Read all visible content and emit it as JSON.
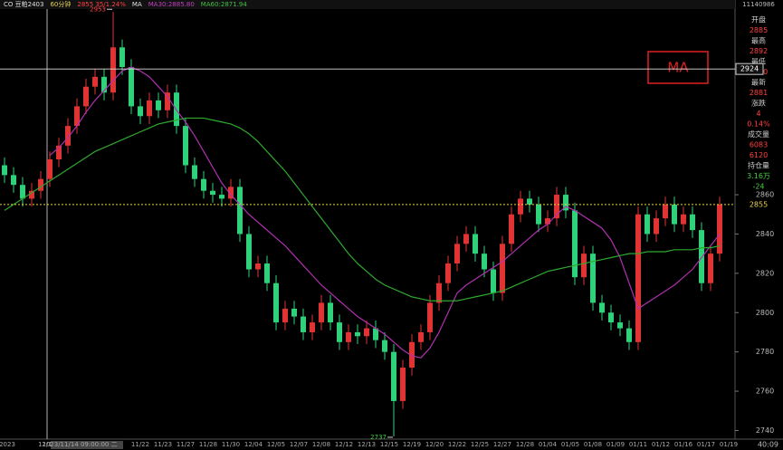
{
  "chart_data": {
    "type": "candlestick",
    "header": [
      {
        "text": "CO 豆粕2403",
        "color": "#e0e0e0"
      },
      {
        "text": "60分钟",
        "color": "#e8d44d"
      },
      {
        "text": "2855 35/1.24%",
        "color": "#ff4040"
      },
      {
        "text": "MA",
        "color": "#e0e0e0"
      },
      {
        "text": "MA30:2885.80",
        "color": "#c040c0"
      },
      {
        "text": "MA60:2871.94",
        "color": "#40c040"
      }
    ],
    "info_code": "11140986",
    "info": [
      {
        "label": "开盘",
        "value": "2885",
        "color": "#ff4040"
      },
      {
        "label": "最高",
        "value": "2892",
        "color": "#ff4040"
      },
      {
        "label": "最低",
        "value": "2880",
        "color": "#ff4040"
      },
      {
        "label": "最新",
        "value": "2881",
        "color": "#ff4040"
      },
      {
        "label": "涨跌",
        "value": "4",
        "color": "#ff4040"
      },
      {
        "label": null,
        "value": "0.14%",
        "color": "#ff4040"
      },
      {
        "label": "成交量",
        "value": "6083",
        "color": "#ff4040"
      },
      {
        "label": null,
        "value": "6120",
        "color": "#ff4040"
      },
      {
        "label": "持仓量",
        "value": "3.16万",
        "color": "#40d040"
      },
      {
        "label": null,
        "value": "-24",
        "color": "#40d040"
      }
    ],
    "annotation_box": "MA",
    "crosshair_price": 2924,
    "last_price": 2855,
    "high_label": "2953",
    "low_label": "2737",
    "x_labels": [
      "2023",
      "11/1",
      "2023/11/14 09:00:00 二",
      "11/22",
      "11/23",
      "11/27",
      "11/28",
      "11/30",
      "12/04",
      "12/05",
      "12/07",
      "12/08",
      "12/12",
      "12/13",
      "12/15",
      "12/19",
      "12/20",
      "12/22",
      "12/25",
      "12/27",
      "12/28",
      "01/04",
      "01/05",
      "01/08",
      "01/09",
      "01/11",
      "01/12",
      "01/16",
      "01/17",
      "01/19"
    ],
    "corner_label": "40:09",
    "up_color": "#e03434",
    "down_color": "#2fd27a",
    "ylim": [
      2735.6,
      2954.5
    ],
    "yticks": [
      2740,
      2760,
      2780,
      2800,
      2820,
      2840,
      2860
    ],
    "open": [
      2875,
      2870,
      2865,
      2858,
      2862,
      2868,
      2878,
      2885,
      2895,
      2905,
      2915,
      2920,
      2912,
      2935,
      2925,
      2905,
      2900,
      2908,
      2903,
      2912,
      2895,
      2875,
      2868,
      2862,
      2860,
      2858,
      2864,
      2840,
      2822,
      2825,
      2815,
      2795,
      2802,
      2798,
      2790,
      2795,
      2805,
      2795,
      2785,
      2790,
      2788,
      2792,
      2786,
      2780,
      2755,
      2772,
      2785,
      2790,
      2805,
      2815,
      2825,
      2835,
      2840,
      2830,
      2822,
      2810,
      2835,
      2850,
      2858,
      2855,
      2845,
      2848,
      2860,
      2852,
      2818,
      2830,
      2805,
      2800,
      2795,
      2792,
      2785,
      2850,
      2840,
      2848,
      2855,
      2845,
      2850,
      2842,
      2815,
      2830
    ],
    "high": [
      2879,
      2874,
      2869,
      2866,
      2872,
      2882,
      2889,
      2899,
      2909,
      2919,
      2924,
      2924,
      2953,
      2939,
      2929,
      2909,
      2912,
      2912,
      2916,
      2916,
      2899,
      2879,
      2872,
      2866,
      2864,
      2868,
      2868,
      2844,
      2829,
      2829,
      2819,
      2806,
      2806,
      2802,
      2799,
      2809,
      2809,
      2799,
      2794,
      2794,
      2796,
      2796,
      2790,
      2784,
      2776,
      2789,
      2794,
      2809,
      2819,
      2829,
      2839,
      2844,
      2844,
      2834,
      2826,
      2839,
      2854,
      2862,
      2862,
      2859,
      2852,
      2864,
      2864,
      2856,
      2834,
      2834,
      2809,
      2804,
      2799,
      2796,
      2854,
      2854,
      2852,
      2859,
      2859,
      2854,
      2854,
      2846,
      2834,
      2859
    ],
    "low": [
      2866,
      2861,
      2854,
      2854,
      2858,
      2864,
      2874,
      2881,
      2891,
      2901,
      2911,
      2908,
      2908,
      2921,
      2901,
      2896,
      2896,
      2899,
      2899,
      2891,
      2871,
      2864,
      2858,
      2856,
      2854,
      2854,
      2836,
      2818,
      2818,
      2811,
      2791,
      2791,
      2794,
      2786,
      2786,
      2791,
      2791,
      2781,
      2781,
      2784,
      2784,
      2782,
      2776,
      2737,
      2751,
      2768,
      2781,
      2786,
      2801,
      2811,
      2821,
      2831,
      2826,
      2818,
      2806,
      2806,
      2831,
      2846,
      2851,
      2841,
      2841,
      2844,
      2848,
      2814,
      2814,
      2801,
      2796,
      2791,
      2788,
      2781,
      2781,
      2836,
      2836,
      2844,
      2841,
      2841,
      2838,
      2811,
      2811,
      2826
    ],
    "close": [
      2870,
      2865,
      2858,
      2862,
      2868,
      2878,
      2885,
      2895,
      2905,
      2915,
      2920,
      2912,
      2935,
      2925,
      2905,
      2900,
      2908,
      2903,
      2912,
      2895,
      2875,
      2868,
      2862,
      2860,
      2858,
      2864,
      2840,
      2822,
      2825,
      2815,
      2795,
      2802,
      2798,
      2790,
      2795,
      2805,
      2795,
      2785,
      2790,
      2788,
      2792,
      2786,
      2780,
      2755,
      2772,
      2785,
      2790,
      2805,
      2815,
      2825,
      2835,
      2840,
      2830,
      2822,
      2810,
      2835,
      2850,
      2858,
      2855,
      2845,
      2848,
      2860,
      2852,
      2818,
      2830,
      2805,
      2800,
      2795,
      2792,
      2785,
      2850,
      2840,
      2848,
      2855,
      2845,
      2850,
      2842,
      2815,
      2830,
      2855
    ],
    "series": [
      {
        "name": "MA30",
        "color": "#b030b0",
        "values": [
          null,
          null,
          null,
          null,
          null,
          2880,
          2884,
          2889,
          2895,
          2902,
          2908,
          2913,
          2918,
          2923,
          2925,
          2923,
          2920,
          2915,
          2910,
          2903,
          2897,
          2890,
          2882,
          2874,
          2866,
          2860,
          2855,
          2850,
          2846,
          2842,
          2838,
          2834,
          2829,
          2824,
          2819,
          2814,
          2810,
          2806,
          2802,
          2798,
          2795,
          2792,
          2789,
          2785,
          2781,
          2778,
          2777,
          2782,
          2790,
          2800,
          2810,
          2814,
          2817,
          2820,
          2823,
          2826,
          2830,
          2834,
          2838,
          2842,
          2845,
          2850,
          2854,
          2852,
          2849,
          2846,
          2843,
          2837,
          2828,
          2815,
          2802,
          2805,
          2808,
          2811,
          2814,
          2818,
          2822,
          2828,
          2834,
          2840
        ]
      },
      {
        "name": "MA60",
        "color": "#2fa82f",
        "values": [
          2852,
          2855,
          2858,
          2861,
          2864,
          2867,
          2870,
          2873,
          2876,
          2879,
          2882,
          2884,
          2886,
          2888,
          2890,
          2892,
          2894,
          2896,
          2897,
          2898,
          2899,
          2899,
          2899,
          2898,
          2897,
          2896,
          2894,
          2891,
          2887,
          2882,
          2877,
          2872,
          2866,
          2860,
          2854,
          2848,
          2842,
          2836,
          2830,
          2825,
          2821,
          2817,
          2814,
          2812,
          2810,
          2808,
          2807,
          2806,
          2806,
          2806,
          2806,
          2807,
          2808,
          2809,
          2810,
          2811,
          2813,
          2815,
          2817,
          2819,
          2821,
          2822,
          2823,
          2824,
          2825,
          2826,
          2827,
          2828,
          2829,
          2830,
          2830,
          2831,
          2831,
          2831,
          2832,
          2832,
          2832,
          2833,
          2833,
          2834
        ]
      }
    ]
  }
}
